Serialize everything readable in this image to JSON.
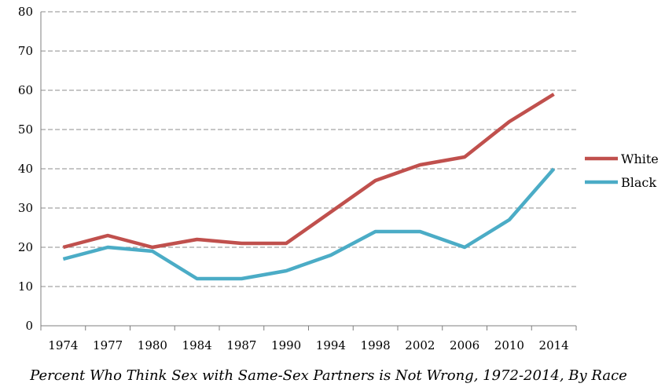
{
  "chart_data": {
    "type": "line",
    "title": "Percent Who Think Sex with Same-Sex Partners is Not Wrong, 1972-2014, By Race",
    "xlabel": "",
    "ylabel": "",
    "categories": [
      "1974",
      "1977",
      "1980",
      "1984",
      "1987",
      "1990",
      "1994",
      "1998",
      "2002",
      "2006",
      "2010",
      "2014"
    ],
    "ylim": [
      0,
      80
    ],
    "yticks": [
      0,
      10,
      20,
      30,
      40,
      50,
      60,
      70,
      80
    ],
    "grid": "horizontal dashed",
    "legend_position": "right",
    "series": [
      {
        "name": "White",
        "color": "#c0504d",
        "values": [
          20,
          23,
          20,
          22,
          21,
          21,
          29,
          37,
          41,
          43,
          52,
          59
        ]
      },
      {
        "name": "Black",
        "color": "#4bacc6",
        "values": [
          17,
          20,
          19,
          12,
          12,
          14,
          18,
          24,
          24,
          20,
          27,
          40
        ]
      }
    ]
  }
}
